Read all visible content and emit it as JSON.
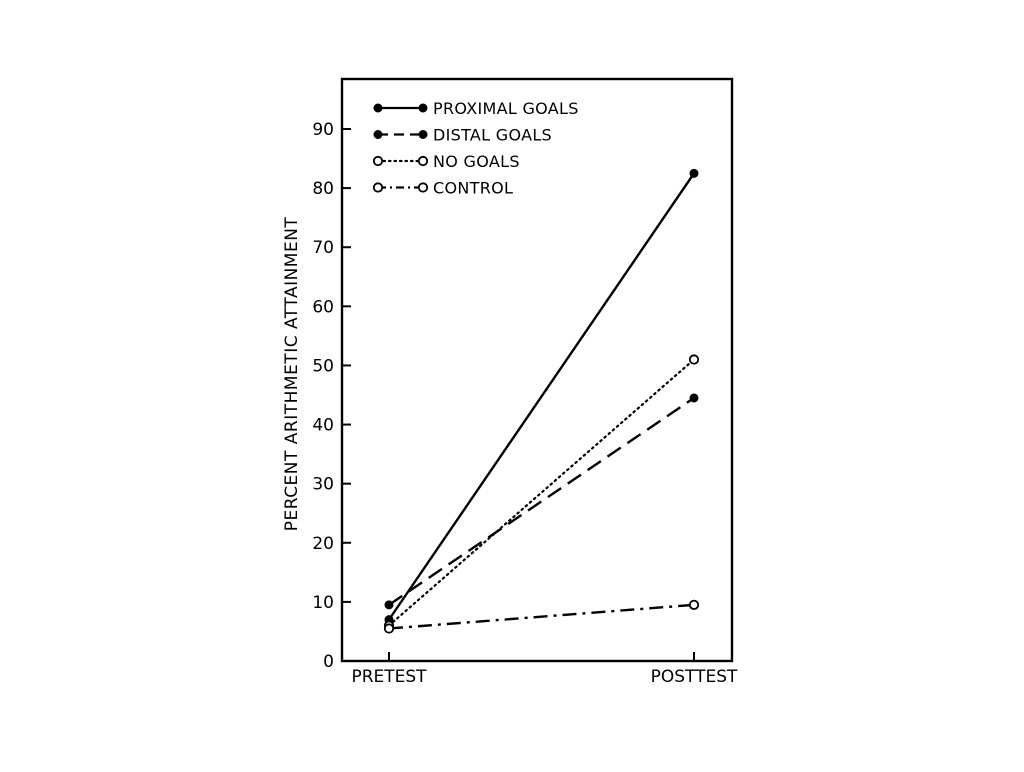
{
  "chart_data": {
    "type": "line",
    "title": "",
    "xlabel": "",
    "ylabel": "PERCENT ARITHMETIC ATTAINMENT",
    "categories": [
      "PRETEST",
      "POSTTEST"
    ],
    "ylim": [
      0,
      100
    ],
    "yticks": [
      0,
      10,
      20,
      30,
      40,
      50,
      60,
      70,
      80,
      90
    ],
    "ytick_labels": [
      "0",
      "10",
      "20",
      "30",
      "40",
      "50",
      "60",
      "70",
      "80",
      "90"
    ],
    "grid": false,
    "legend_position": "top-left",
    "series": [
      {
        "name": "PROXIMAL GOALS",
        "values": [
          7,
          82.5
        ],
        "line": "solid",
        "marker": "filled"
      },
      {
        "name": "DISTAL GOALS",
        "values": [
          9.5,
          44.5
        ],
        "line": "dashed",
        "marker": "filled"
      },
      {
        "name": "NO GOALS",
        "values": [
          6,
          51
        ],
        "line": "dotted",
        "marker": "open"
      },
      {
        "name": "CONTROL",
        "values": [
          5.5,
          9.5
        ],
        "line": "dashdot",
        "marker": "open"
      }
    ],
    "colors": {
      "ink": "#000000",
      "background": "#ffffff"
    }
  }
}
